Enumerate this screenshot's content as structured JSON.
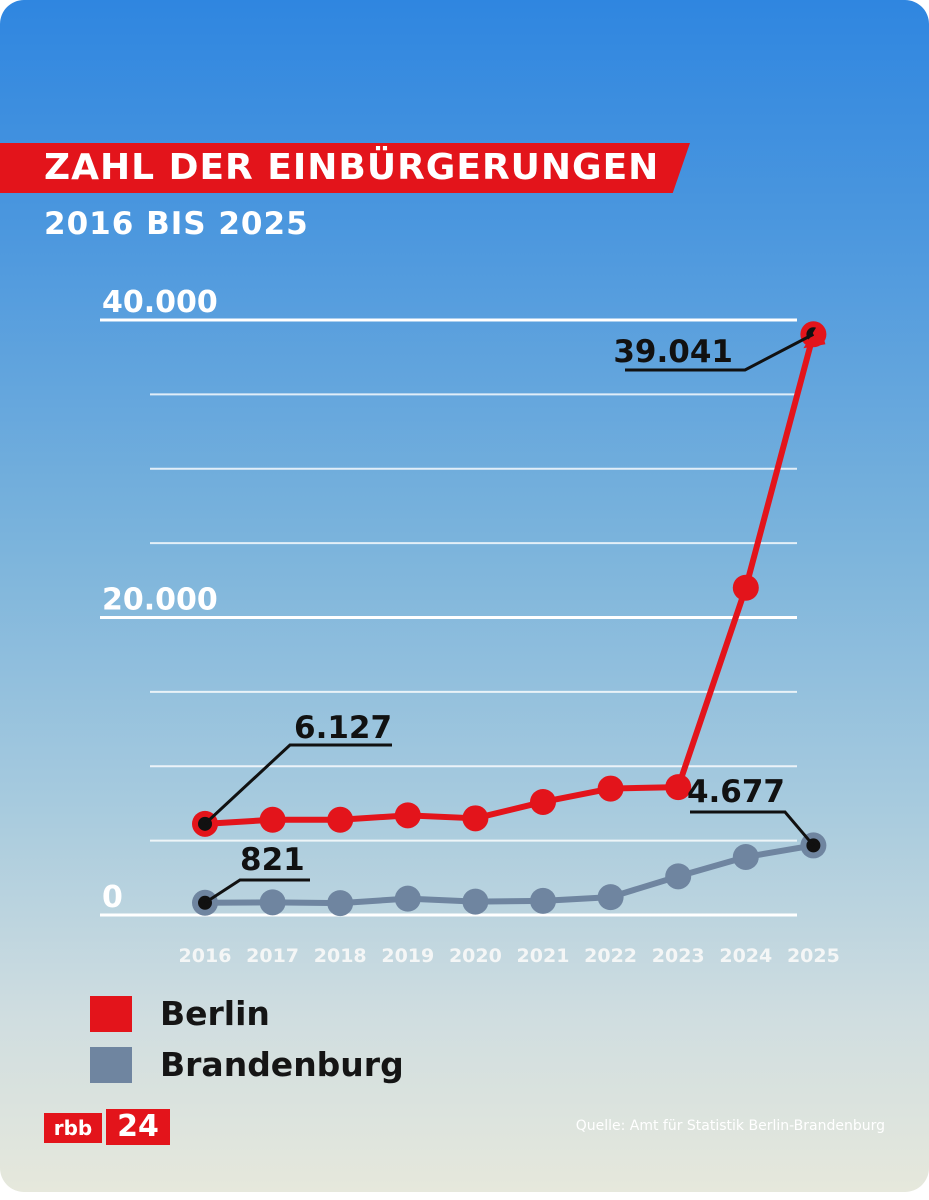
{
  "chart_data": {
    "type": "line",
    "title": "ZAHL DER EINBÜRGERUNGEN",
    "subtitle": "2016 BIS 2025",
    "x": [
      "2016",
      "2017",
      "2018",
      "2019",
      "2020",
      "2021",
      "2022",
      "2023",
      "2024",
      "2025"
    ],
    "ylim": [
      0,
      40000
    ],
    "y_tick_labels": [
      {
        "value": 0,
        "label": "0"
      },
      {
        "value": 20000,
        "label": "20.000"
      },
      {
        "value": 40000,
        "label": "40.000"
      }
    ],
    "grid_step": 5000,
    "grid": true,
    "legend_position": "bottom-left",
    "series": [
      {
        "name": "Berlin",
        "color": "#e3141b",
        "values": [
          6127,
          6400,
          6400,
          6700,
          6500,
          7600,
          8500,
          8600,
          22000,
          39041
        ]
      },
      {
        "name": "Brandenburg",
        "color": "#6f85a0",
        "values": [
          821,
          850,
          800,
          1100,
          900,
          950,
          1200,
          2600,
          3900,
          4677
        ]
      }
    ],
    "annotations": [
      {
        "series": "Berlin",
        "year": "2016",
        "label": "6.127"
      },
      {
        "series": "Berlin",
        "year": "2025",
        "label": "39.041"
      },
      {
        "series": "Brandenburg",
        "year": "2016",
        "label": "821"
      },
      {
        "series": "Brandenburg",
        "year": "2025",
        "label": "4.677"
      }
    ]
  },
  "legend": {
    "items": [
      {
        "label": "Berlin",
        "color": "#e3141b"
      },
      {
        "label": "Brandenburg",
        "color": "#6f85a0"
      }
    ]
  },
  "branding": {
    "logo_left": "rbb",
    "logo_right": "24"
  },
  "source": "Quelle: Amt für Statistik Berlin-Brandenburg"
}
